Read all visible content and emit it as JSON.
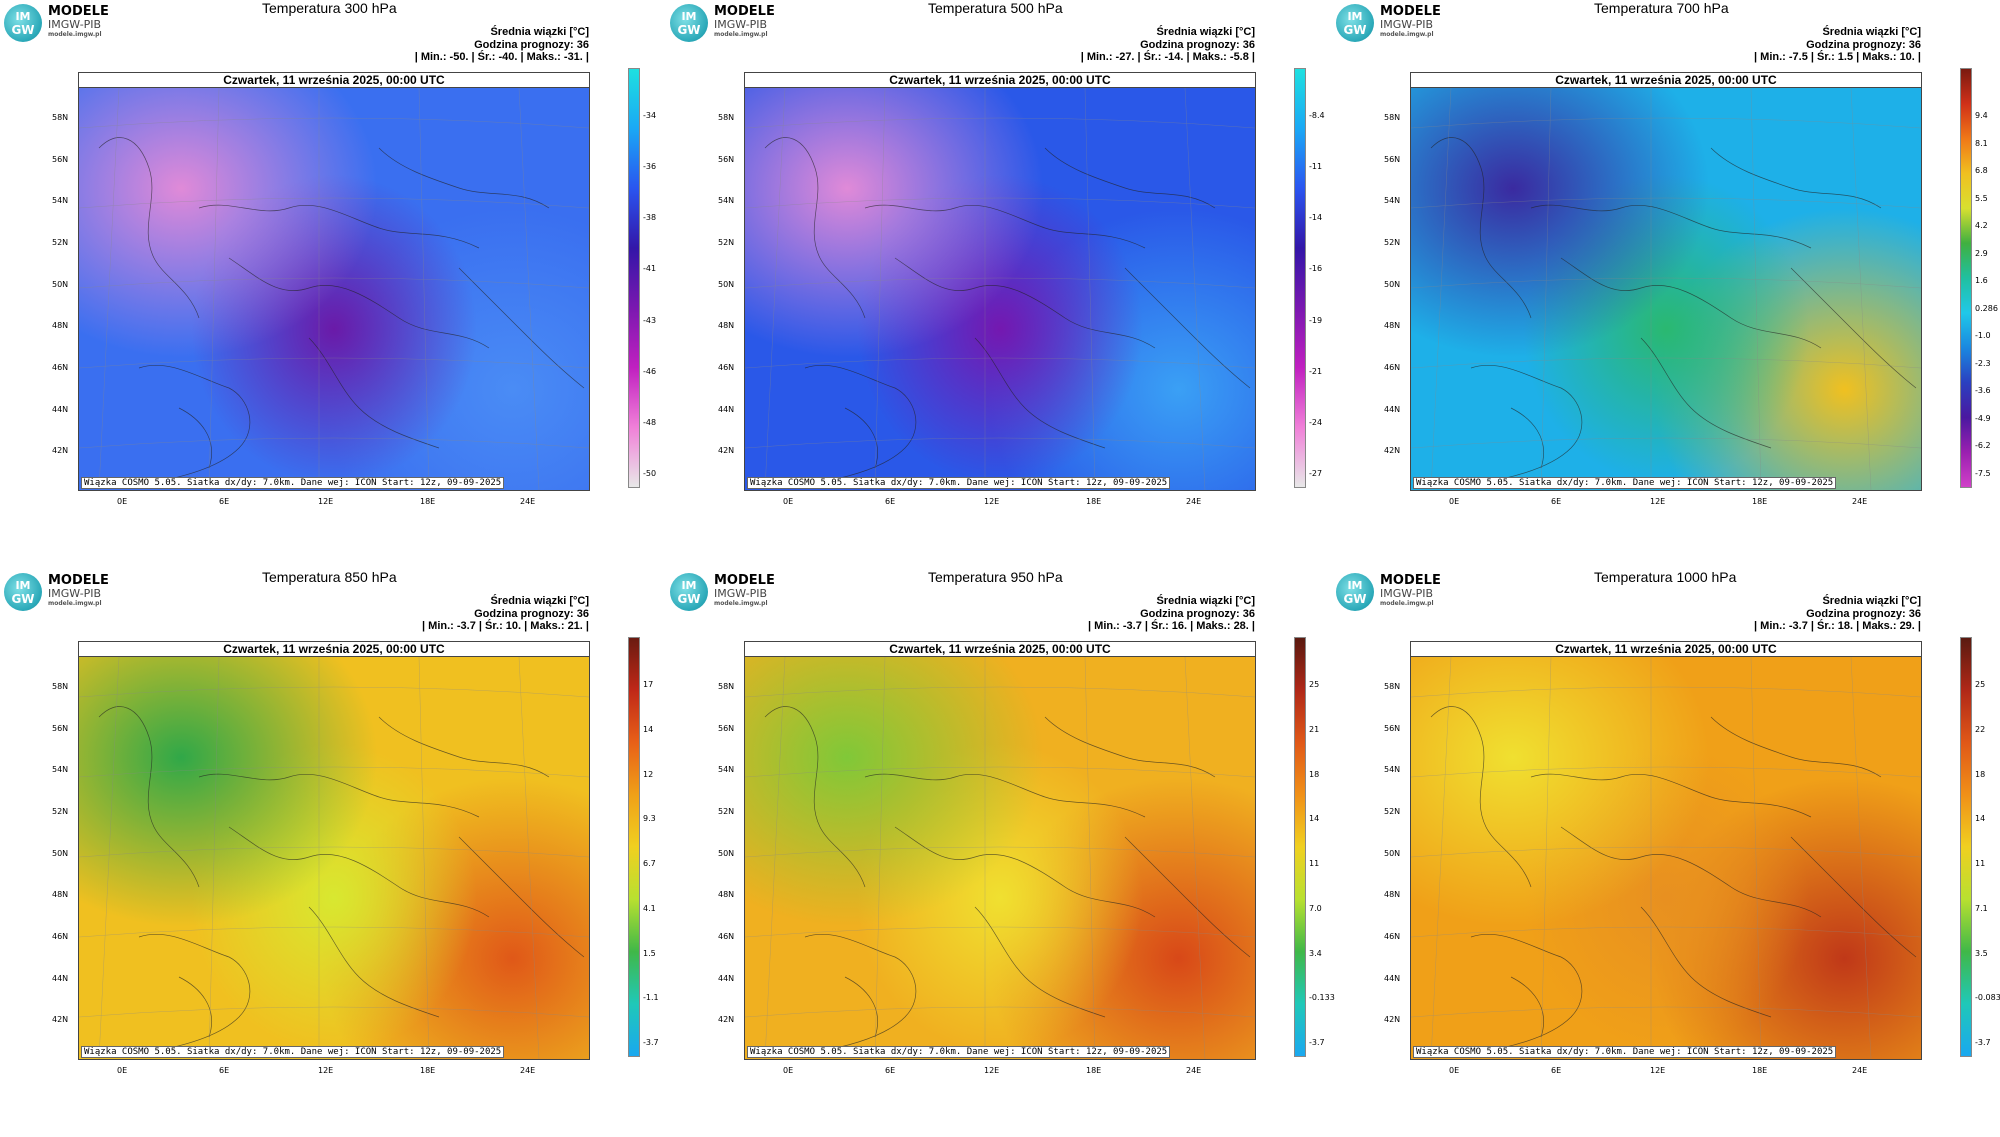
{
  "logo": {
    "circle_top": "IM",
    "circle_bottom": "GW",
    "title": "MODELE",
    "subtitle": "IMGW-PIB",
    "url": "modele.imgw.pl"
  },
  "common": {
    "date": "Czwartek, 11 września 2025, 00:00 UTC",
    "ensemble": "Średnia wiązki [°C]",
    "forecast_hour": "Godzina prognozy: 36",
    "credit": "Wiązka COSMO 5.05. Siatka dx/dy: 7.0km. Dane wej: ICON Start: 12z, 09-09-2025",
    "lat_labels": [
      "58N",
      "56N",
      "54N",
      "52N",
      "50N",
      "48N",
      "46N",
      "44N",
      "42N"
    ],
    "lon_labels": [
      "0E",
      "6E",
      "12E",
      "18E",
      "24E"
    ]
  },
  "panels": [
    {
      "title": "Temperatura 300 hPa",
      "stats": "| Min.:   -50. | Śr.:   -40. | Maks.:   -31. |",
      "colorbar_labels": [
        "-34",
        "-36",
        "-38",
        "-41",
        "-43",
        "-46",
        "-48",
        "-50"
      ],
      "colors": {
        "base": "#3a6ff0",
        "cold": "#e08ad8",
        "mid": "#6a1aa8",
        "warm": "#4a8cf5"
      },
      "cbar_colors": [
        "#1ee0e0",
        "#1aa8f5",
        "#2a55f0",
        "#3316a8",
        "#7a18b0",
        "#c020c0",
        "#f080d8",
        "#e8e8e8"
      ]
    },
    {
      "title": "Temperatura 500 hPa",
      "stats": "| Min.:   -27. | Śr.:   -14. | Maks.:   -5.8 |",
      "colorbar_labels": [
        "-8.4",
        "-11",
        "-14",
        "-16",
        "-19",
        "-21",
        "-24",
        "-27"
      ],
      "colors": {
        "base": "#2a58e8",
        "cold": "#e08ad8",
        "mid": "#7418b0",
        "warm": "#3aa0f5"
      },
      "cbar_colors": [
        "#1ee0e0",
        "#1aa8f5",
        "#2a55f0",
        "#3316a8",
        "#7a18b0",
        "#c020c0",
        "#f080d8",
        "#e8e8e8"
      ]
    },
    {
      "title": "Temperatura 700 hPa",
      "stats": "| Min.:   -7.5 | Śr.:   1.5 | Maks.:   10. |",
      "colorbar_labels": [
        "9.4",
        "8.1",
        "6.8",
        "5.5",
        "4.2",
        "2.9",
        "1.6",
        "0.286",
        "-1.0",
        "-2.3",
        "-3.6",
        "-4.9",
        "-6.2",
        "-7.5"
      ],
      "colors": {
        "base": "#1eb0e8",
        "cold": "#3a2aa0",
        "mid": "#2ab870",
        "warm": "#f0c020"
      },
      "cbar_colors": [
        "#7a1a10",
        "#d03018",
        "#f07818",
        "#f0c020",
        "#d8e030",
        "#40b040",
        "#20c0a0",
        "#20c8e8",
        "#1a88e0",
        "#2a40c0",
        "#4a18a0",
        "#9a20b0",
        "#d040c8"
      ]
    },
    {
      "title": "Temperatura 850 hPa",
      "stats": "| Min.:   -3.7 | Śr.:   10. | Maks.:   21. |",
      "colorbar_labels": [
        "17",
        "14",
        "12",
        "9.3",
        "6.7",
        "4.1",
        "1.5",
        "-1.1",
        "-3.7"
      ],
      "colors": {
        "base": "#f0c020",
        "cold": "#30a848",
        "mid": "#d8e830",
        "warm": "#e05818"
      },
      "cbar_colors": [
        "#6a1a10",
        "#c02818",
        "#e86018",
        "#f0a018",
        "#f0d020",
        "#b8e030",
        "#40b848",
        "#20c8b8",
        "#1aa8f0"
      ]
    },
    {
      "title": "Temperatura 950 hPa",
      "stats": "| Min.:   -3.7 | Śr.:   16. | Maks.:   28. |",
      "colorbar_labels": [
        "25",
        "21",
        "18",
        "14",
        "11",
        "7.0",
        "3.4",
        "-0.133",
        "-3.7"
      ],
      "colors": {
        "base": "#f0b020",
        "cold": "#80c838",
        "mid": "#f0e030",
        "warm": "#d84818"
      },
      "cbar_colors": [
        "#5a1a10",
        "#b02818",
        "#e05818",
        "#f09018",
        "#f0d020",
        "#b8e030",
        "#40b848",
        "#20c8b8",
        "#1aa8f0"
      ]
    },
    {
      "title": "Temperatura 1000 hPa",
      "stats": "| Min.:   -3.7 | Śr.:   18. | Maks.:   29. |",
      "colorbar_labels": [
        "25",
        "22",
        "18",
        "14",
        "11",
        "7.1",
        "3.5",
        "-0.083",
        "-3.7"
      ],
      "colors": {
        "base": "#f0a018",
        "cold": "#f0e030",
        "mid": "#e89020",
        "warm": "#c03818"
      },
      "cbar_colors": [
        "#5a1a10",
        "#b02818",
        "#e05818",
        "#f09018",
        "#f0d020",
        "#b8e030",
        "#40b848",
        "#20c8b8",
        "#1aa8f0"
      ]
    }
  ]
}
